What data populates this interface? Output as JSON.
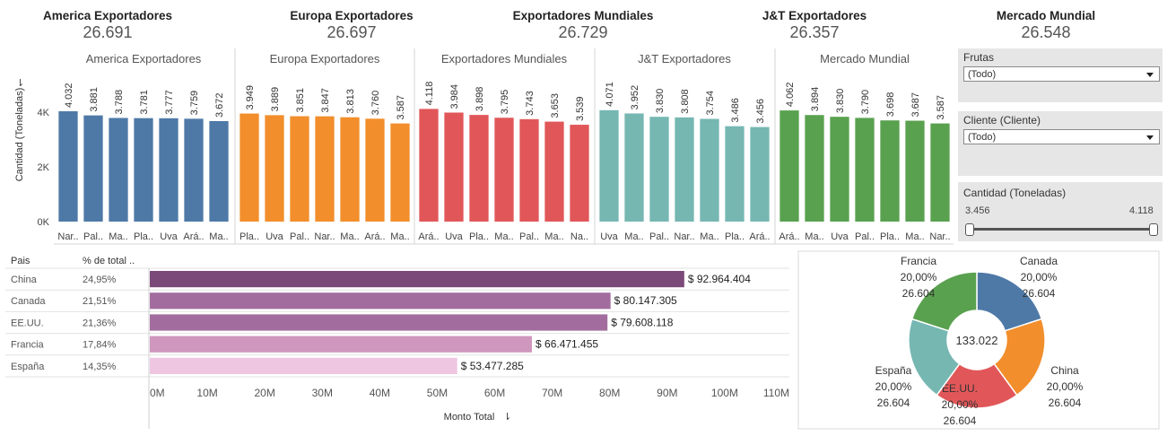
{
  "kpis": [
    {
      "title": "America Exportadores",
      "value": "26.691"
    },
    {
      "title": "Europa Exportadores",
      "value": "26.697"
    },
    {
      "title": "Exportadores Mundiales",
      "value": "26.729"
    },
    {
      "title": "J&T Exportadores",
      "value": "26.357"
    },
    {
      "title": "Mercado Mundial",
      "value": "26.548"
    }
  ],
  "filters": {
    "frutas": {
      "label": "Frutas",
      "value": "(Todo)"
    },
    "cliente": {
      "label": "Cliente (Cliente)",
      "value": "(Todo)"
    },
    "cantidad": {
      "label": "Cantidad (Toneladas)",
      "min": "3.456",
      "max": "4.118"
    }
  },
  "chart_data": [
    {
      "type": "bar",
      "ylabel": "Cantidad (Toneladas)",
      "ylim": [
        0,
        4400
      ],
      "yticks": [
        "0K",
        "2K",
        "4K"
      ],
      "ytick_values": [
        0,
        2000,
        4000
      ],
      "panels": [
        {
          "title": "America Exportadores",
          "color": "#4e79a7",
          "categories": [
            "Nar..",
            "Pal..",
            "Ma..",
            "Pla..",
            "Uva",
            "Ará..",
            "Ma.."
          ],
          "values": [
            4032,
            3881,
            3788,
            3781,
            3777,
            3759,
            3672
          ],
          "labels": [
            "4.032",
            "3.881",
            "3.788",
            "3.781",
            "3.777",
            "3.759",
            "3.672"
          ]
        },
        {
          "title": "Europa Exportadores",
          "color": "#f28e2b",
          "categories": [
            "Pla..",
            "Uva",
            "Pal..",
            "Nar..",
            "Ma..",
            "Ará..",
            "Ma.."
          ],
          "values": [
            3949,
            3889,
            3851,
            3847,
            3813,
            3760,
            3587
          ],
          "labels": [
            "3.949",
            "3.889",
            "3.851",
            "3.847",
            "3.813",
            "3.760",
            "3.587"
          ]
        },
        {
          "title": "Exportadores Mundiales",
          "color": "#e15759",
          "categories": [
            "Ará..",
            "Uva",
            "Pla..",
            "Ma..",
            "Pal..",
            "Ma..",
            "Na.."
          ],
          "values": [
            4118,
            3984,
            3898,
            3795,
            3743,
            3653,
            3539
          ],
          "labels": [
            "4.118",
            "3.984",
            "3.898",
            "3.795",
            "3.743",
            "3.653",
            "3.539"
          ]
        },
        {
          "title": "J&T Exportadores",
          "color": "#76b7b2",
          "categories": [
            "Uva",
            "Ma..",
            "Pal..",
            "Nar..",
            "Ma..",
            "Pla..",
            "Ará.."
          ],
          "values": [
            4071,
            3952,
            3830,
            3808,
            3754,
            3486,
            3456
          ],
          "labels": [
            "4.071",
            "3.952",
            "3.830",
            "3.808",
            "3.754",
            "3.486",
            "3.456"
          ]
        },
        {
          "title": "Mercado Mundial",
          "color": "#59a14f",
          "categories": [
            "Ará..",
            "Ma..",
            "Uva",
            "Pal..",
            "Pla..",
            "Ma..",
            "Nar.."
          ],
          "values": [
            4062,
            3894,
            3830,
            3790,
            3698,
            3687,
            3587
          ],
          "labels": [
            "4.062",
            "3.894",
            "3.830",
            "3.790",
            "3.698",
            "3.687",
            "3.587"
          ]
        }
      ]
    },
    {
      "type": "bar",
      "orientation": "horizontal",
      "col_headers": [
        "Pais",
        "% de total .."
      ],
      "categories": [
        "China",
        "Canada",
        "EE.UU.",
        "Francia",
        "España"
      ],
      "percents": [
        "24,95%",
        "21,51%",
        "21,36%",
        "17,84%",
        "14,35%"
      ],
      "values": [
        92964404,
        80147305,
        79608118,
        66471455,
        53477285
      ],
      "labels": [
        "$ 92.964.404",
        "$ 80.147.305",
        "$ 79.608.118",
        "$ 66.471.455",
        "$ 53.477.285"
      ],
      "colors": [
        "#7b4a78",
        "#a26d9e",
        "#a26d9e",
        "#cf97bd",
        "#efc6e2"
      ],
      "xlabel": "Monto Total",
      "xlim": [
        0,
        110000000
      ],
      "xticks": [
        "0M",
        "10M",
        "20M",
        "30M",
        "40M",
        "50M",
        "60M",
        "70M",
        "80M",
        "90M",
        "100M",
        "110M"
      ]
    },
    {
      "type": "pie",
      "center_label": "133.022",
      "slices": [
        {
          "name": "Canada",
          "pct": "20,00%",
          "value": 26604,
          "value_label": "26.604",
          "color": "#4e79a7"
        },
        {
          "name": "China",
          "pct": "20,00%",
          "value": 26604,
          "value_label": "26.604",
          "color": "#f28e2b"
        },
        {
          "name": "EE.UU.",
          "pct": "20,00%",
          "value": 26604,
          "value_label": "26.604",
          "color": "#e15759"
        },
        {
          "name": "España",
          "pct": "20,00%",
          "value": 26604,
          "value_label": "26.604",
          "color": "#76b7b2"
        },
        {
          "name": "Francia",
          "pct": "20,00%",
          "value": 26604,
          "value_label": "26.604",
          "color": "#59a14f"
        }
      ]
    }
  ]
}
